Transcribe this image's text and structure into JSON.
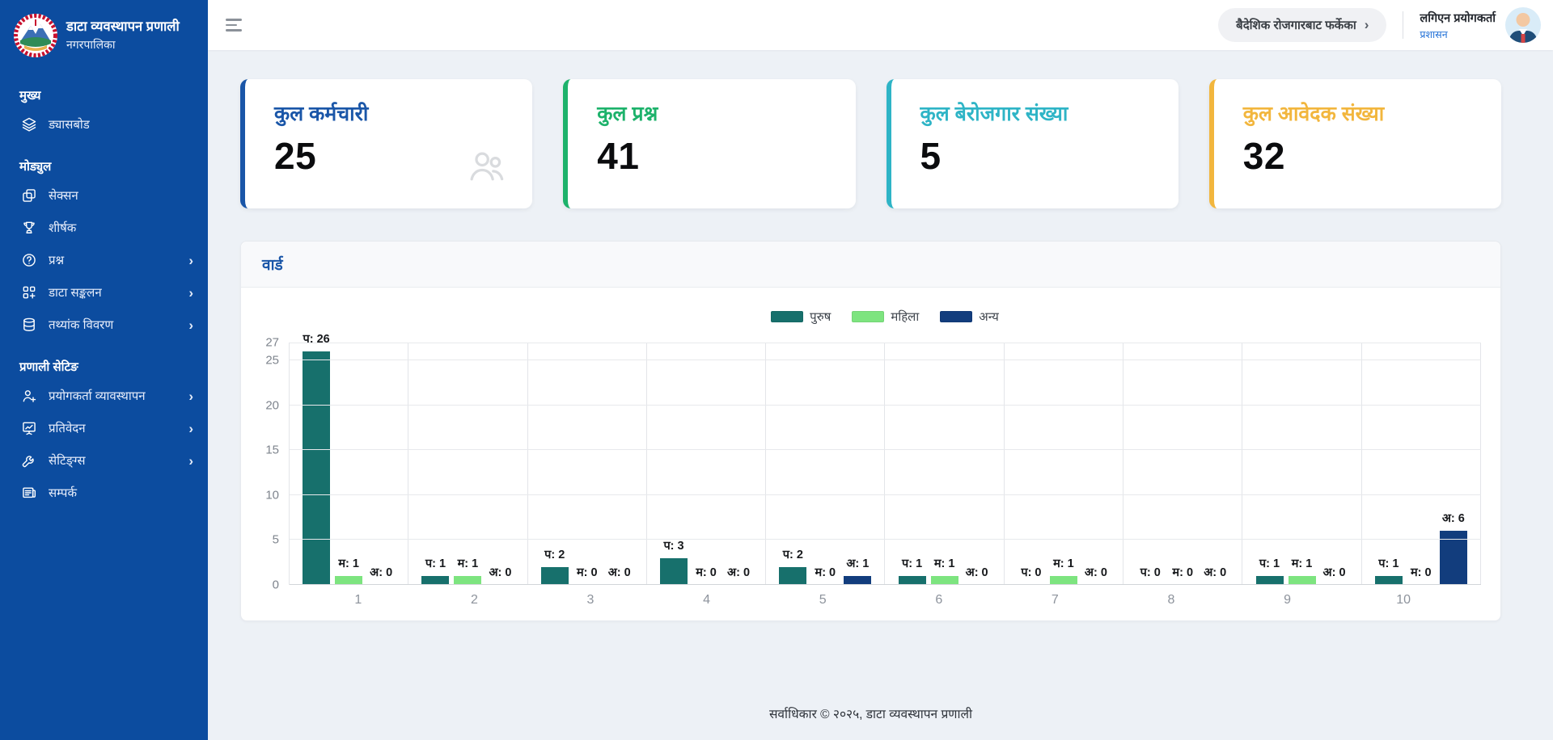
{
  "brand": {
    "title": "डाटा व्यवस्थापन प्रणाली",
    "subtitle": "नगरपालिका",
    "logo": "municipality-emblem-logo"
  },
  "sidebar": {
    "sections": [
      {
        "label": "मुख्य",
        "items": [
          {
            "id": "dashboard",
            "label": "ड्यासबोड",
            "icon": "layers-icon",
            "chevron": false
          }
        ]
      },
      {
        "label": "मोड्युल",
        "items": [
          {
            "id": "section",
            "label": "सेक्सन",
            "icon": "copy-icon",
            "chevron": false
          },
          {
            "id": "title",
            "label": "शीर्षक",
            "icon": "trophy-icon",
            "chevron": false
          },
          {
            "id": "question",
            "label": "प्रश्न",
            "icon": "question-circle-icon",
            "chevron": true
          },
          {
            "id": "data-collection",
            "label": "डाटा सङ्कलन",
            "icon": "collection-add-icon",
            "chevron": true
          },
          {
            "id": "statistics-detail",
            "label": "तथ्यांक विवरण",
            "icon": "database-icon",
            "chevron": true
          }
        ]
      },
      {
        "label": "प्रणाली सेटिङ",
        "items": [
          {
            "id": "user-management",
            "label": "प्रयोगकर्ता व्यावस्थापन",
            "icon": "user-plus-icon",
            "chevron": true
          },
          {
            "id": "report",
            "label": "प्रतिवेदन",
            "icon": "report-chart-icon",
            "chevron": true
          },
          {
            "id": "settings",
            "label": "सेटिङ्ग्स",
            "icon": "wrench-icon",
            "chevron": true
          },
          {
            "id": "contact",
            "label": "सम्पर्क",
            "icon": "contact-icon",
            "chevron": false
          }
        ]
      }
    ]
  },
  "header": {
    "collection_button_label": "बैदेशिक रोजगारबाट फर्केका",
    "user_name": "लगिएन प्रयोगकर्ता",
    "user_role": "प्रशासन"
  },
  "stats": [
    {
      "id": "total-employees",
      "title": "कुल कर्मचारी",
      "value": "25",
      "color": "#1a56a8",
      "icon": "users-icon"
    },
    {
      "id": "total-questions",
      "title": "कुल प्रश्न",
      "value": "41",
      "color": "#1db26b",
      "icon": null
    },
    {
      "id": "total-unemployed",
      "title": "कुल बेरोजगार संख्या",
      "value": "5",
      "color": "#2eb4c6",
      "icon": null
    },
    {
      "id": "total-applicants",
      "title": "कुल आवेदक संख्या",
      "value": "32",
      "color": "#f2b63d",
      "icon": null
    }
  ],
  "chart_data": {
    "type": "bar",
    "title": "वार्ड",
    "categories": [
      "1",
      "2",
      "3",
      "4",
      "5",
      "6",
      "7",
      "8",
      "9",
      "10"
    ],
    "series": [
      {
        "name": "पुरुष",
        "short": "प",
        "color": "#17706c",
        "values": [
          26,
          1,
          2,
          3,
          2,
          1,
          0,
          0,
          1,
          1
        ]
      },
      {
        "name": "महिला",
        "short": "म",
        "color": "#7de47f",
        "values": [
          1,
          1,
          0,
          0,
          0,
          1,
          1,
          0,
          1,
          0
        ]
      },
      {
        "name": "अन्य",
        "short": "अ",
        "color": "#123d7d",
        "values": [
          0,
          0,
          0,
          0,
          1,
          0,
          0,
          0,
          0,
          6
        ]
      }
    ],
    "ylim": [
      0,
      27
    ],
    "yticks": [
      0,
      5,
      10,
      15,
      20,
      25,
      27
    ],
    "xlabel": "",
    "ylabel": "",
    "legend_position": "top-center",
    "grid": true,
    "label_format": "{short}: {value}"
  },
  "footer": {
    "copyright": "सर्वाधिकार © २०२५, डाटा व्यवस्थापन प्रणाली"
  }
}
